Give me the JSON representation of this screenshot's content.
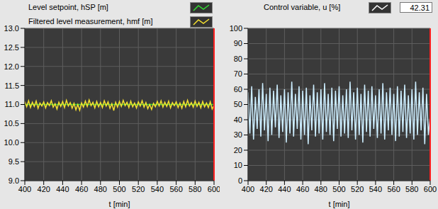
{
  "chart_data": [
    {
      "type": "line",
      "x": [
        400,
        402,
        404,
        406,
        408,
        410,
        412,
        414,
        416,
        418,
        420,
        422,
        424,
        426,
        428,
        430,
        432,
        434,
        436,
        438,
        440,
        442,
        444,
        446,
        448,
        450,
        452,
        454,
        456,
        458,
        460,
        462,
        464,
        466,
        468,
        470,
        472,
        474,
        476,
        478,
        480,
        482,
        484,
        486,
        488,
        490,
        492,
        494,
        496,
        498,
        500,
        502,
        504,
        506,
        508,
        510,
        512,
        514,
        516,
        518,
        520,
        522,
        524,
        526,
        528,
        530,
        532,
        534,
        536,
        538,
        540,
        542,
        544,
        546,
        548,
        550,
        552,
        554,
        556,
        558,
        560,
        562,
        564,
        566,
        568,
        570,
        572,
        574,
        576,
        578,
        580,
        582,
        584,
        586,
        588,
        590,
        592,
        594,
        596,
        598,
        600
      ],
      "series": [
        {
          "name": "Level setpoint, hSP [m]",
          "color": "#33dd33",
          "values": [
            11,
            11,
            11,
            11,
            11,
            11,
            11,
            11,
            11,
            11,
            11,
            11,
            11,
            11,
            11,
            11,
            11,
            11,
            11,
            11,
            11,
            11,
            11,
            11,
            11,
            11,
            11,
            11,
            11,
            11,
            11,
            11,
            11,
            11,
            11,
            11,
            11,
            11,
            11,
            11,
            11,
            11,
            11,
            11,
            11,
            11,
            11,
            11,
            11,
            11,
            11,
            11,
            11,
            11,
            11,
            11,
            11,
            11,
            11,
            11,
            11,
            11,
            11,
            11,
            11,
            11,
            11,
            11,
            11,
            11,
            11,
            11,
            11,
            11,
            11,
            11,
            11,
            11,
            11,
            11,
            11,
            11,
            11,
            11,
            11,
            11,
            11,
            11,
            11,
            11,
            11,
            11,
            11,
            11,
            11,
            11,
            11,
            11,
            11,
            11,
            11
          ]
        },
        {
          "name": "Filtered level measurement, hmf [m]",
          "color": "#f5e030",
          "values": [
            11.08,
            10.94,
            11.1,
            10.92,
            11.06,
            10.95,
            11.09,
            10.9,
            11.04,
            10.96,
            11.07,
            10.91,
            11.05,
            10.97,
            11.1,
            10.93,
            11.02,
            10.88,
            11.06,
            10.95,
            11.08,
            10.92,
            11.11,
            10.96,
            11.05,
            10.9,
            11.03,
            10.86,
            11.0,
            10.85,
            11.04,
            10.93,
            11.09,
            10.95,
            11.12,
            10.97,
            11.06,
            10.91,
            11.08,
            10.94,
            11.05,
            10.92,
            11.1,
            10.96,
            11.07,
            10.9,
            11.02,
            10.84,
            11.06,
            10.93,
            11.08,
            10.95,
            11.11,
            10.97,
            11.06,
            10.92,
            11.09,
            10.94,
            11.04,
            10.91,
            11.07,
            10.96,
            11.1,
            10.93,
            11.05,
            10.89,
            11.0,
            10.87,
            11.03,
            10.94,
            11.08,
            10.96,
            11.1,
            10.93,
            11.06,
            10.95,
            11.09,
            10.91,
            11.05,
            10.97,
            11.07,
            10.92,
            11.04,
            10.9,
            11.08,
            10.94,
            11.11,
            10.96,
            11.05,
            10.93,
            11.09,
            10.95,
            11.06,
            10.91,
            11.08,
            10.94,
            11.04,
            10.92,
            11.07,
            10.88,
            10.98
          ]
        }
      ],
      "xlabel": "t [min]",
      "xlim": [
        400,
        600
      ],
      "xticks": [
        400,
        420,
        440,
        460,
        480,
        500,
        520,
        540,
        560,
        580,
        600
      ],
      "ylim": [
        9,
        13
      ],
      "yticks": [
        {
          "value": 9,
          "label": "9.0"
        },
        {
          "value": 9.5,
          "label": "9.5"
        },
        {
          "value": 10,
          "label": "10.0"
        },
        {
          "value": 10.5,
          "label": "10.5"
        },
        {
          "value": 11,
          "label": "11.0"
        },
        {
          "value": 11.5,
          "label": "11.5"
        },
        {
          "value": 12,
          "label": "12.0"
        },
        {
          "value": 12.5,
          "label": "12.5"
        },
        {
          "value": 13,
          "label": "13.0"
        }
      ],
      "grid": true
    },
    {
      "type": "line",
      "x": [
        400,
        402,
        404,
        406,
        408,
        410,
        412,
        414,
        416,
        418,
        420,
        422,
        424,
        426,
        428,
        430,
        432,
        434,
        436,
        438,
        440,
        442,
        444,
        446,
        448,
        450,
        452,
        454,
        456,
        458,
        460,
        462,
        464,
        466,
        468,
        470,
        472,
        474,
        476,
        478,
        480,
        482,
        484,
        486,
        488,
        490,
        492,
        494,
        496,
        498,
        500,
        502,
        504,
        506,
        508,
        510,
        512,
        514,
        516,
        518,
        520,
        522,
        524,
        526,
        528,
        530,
        532,
        534,
        536,
        538,
        540,
        542,
        544,
        546,
        548,
        550,
        552,
        554,
        556,
        558,
        560,
        562,
        564,
        566,
        568,
        570,
        572,
        574,
        576,
        578,
        580,
        582,
        584,
        586,
        588,
        590,
        592,
        594,
        596,
        598,
        600
      ],
      "series": [
        {
          "name": "Control variable, u [%]",
          "color": "#cdeeff",
          "values": [
            58,
            31,
            62,
            27,
            55,
            34,
            60,
            29,
            64,
            33,
            57,
            26,
            61,
            30,
            59,
            35,
            63,
            28,
            56,
            32,
            60,
            25,
            58,
            31,
            65,
            29,
            57,
            34,
            62,
            27,
            59,
            30,
            61,
            24,
            56,
            33,
            63,
            29,
            58,
            31,
            60,
            27,
            64,
            32,
            57,
            30,
            61,
            26,
            59,
            34,
            62,
            29,
            56,
            31,
            60,
            28,
            65,
            33,
            58,
            27,
            61,
            30,
            57,
            25,
            63,
            32,
            59,
            29,
            62,
            34,
            56,
            28,
            60,
            31,
            64,
            27,
            58,
            33,
            61,
            30,
            57,
            26,
            62,
            29,
            59,
            32,
            63,
            28,
            56,
            31,
            60,
            27,
            65,
            30,
            58,
            33,
            61,
            24,
            57,
            30,
            42.31
          ]
        }
      ],
      "current_value": 42.31,
      "xlabel": "t [min]",
      "xlim": [
        400,
        600
      ],
      "xticks": [
        400,
        420,
        440,
        460,
        480,
        500,
        520,
        540,
        560,
        580,
        600
      ],
      "ylim": [
        0,
        100
      ],
      "yticks": [
        0,
        10,
        20,
        30,
        40,
        50,
        60,
        70,
        80,
        90,
        100
      ],
      "grid": true
    }
  ]
}
